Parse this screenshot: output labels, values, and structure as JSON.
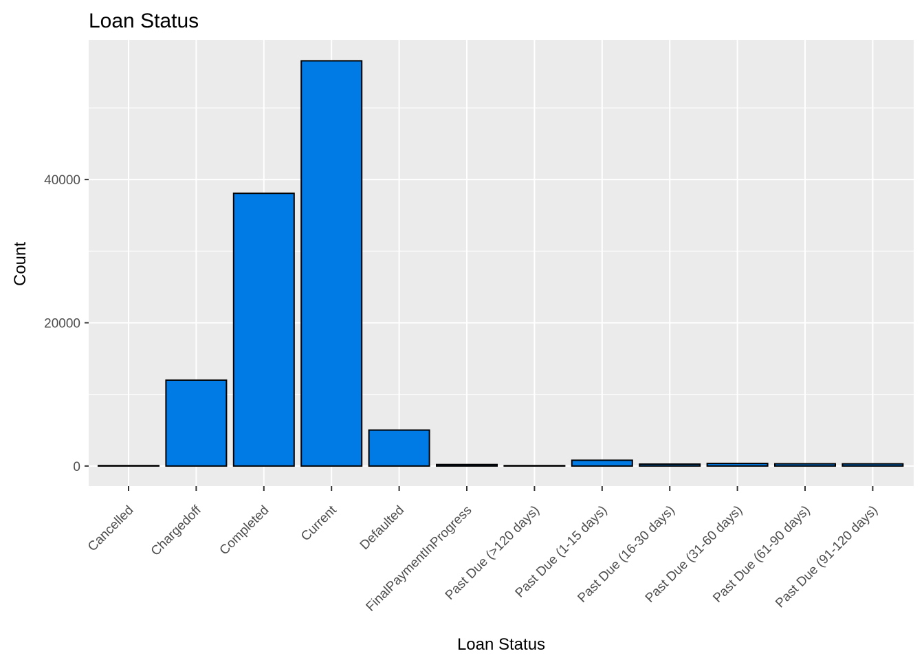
{
  "chart_data": {
    "type": "bar",
    "title": "Loan Status",
    "xlabel": "Loan Status",
    "ylabel": "Count",
    "categories": [
      "Cancelled",
      "Chargedoff",
      "Completed",
      "Current",
      "Defaulted",
      "FinalPaymentInProgress",
      "Past Due (>120 days)",
      "Past Due (1-15 days)",
      "Past Due (16-30 days)",
      "Past Due (31-60 days)",
      "Past Due (61-90 days)",
      "Past Due (91-120 days)"
    ],
    "values": [
      5,
      11992,
      38074,
      56576,
      5018,
      205,
      16,
      806,
      265,
      361,
      313,
      304
    ],
    "ylim": [
      -2800,
      59500
    ],
    "yticks": [
      0,
      20000,
      40000
    ],
    "ytick_labels": [
      "0",
      "20000",
      "40000"
    ],
    "grid": true,
    "legend": "none",
    "colors": {
      "bar_fill": "#007be6",
      "bar_stroke": "#000000",
      "panel_background": "#ebebeb",
      "grid_line": "#ffffff",
      "tick_mark": "#333333",
      "tick_text": "#4d4d4d"
    }
  }
}
